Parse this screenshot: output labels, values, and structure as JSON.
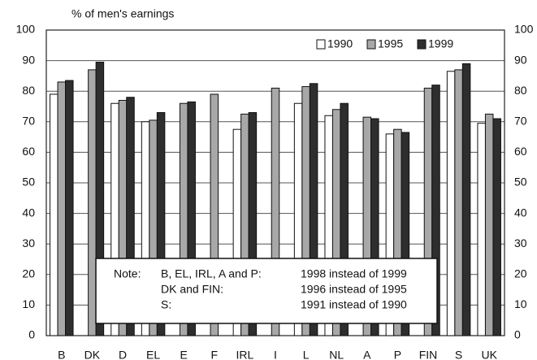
{
  "chart_data": {
    "type": "bar",
    "title": "% of men's earnings",
    "categories": [
      "B",
      "DK",
      "D",
      "EL",
      "E",
      "F",
      "IRL",
      "I",
      "L",
      "NL",
      "A",
      "P",
      "FIN",
      "S",
      "UK"
    ],
    "series": [
      {
        "name": "1990",
        "color": "#ffffff",
        "values": [
          79,
          null,
          76,
          70,
          null,
          null,
          67.5,
          null,
          76,
          72,
          null,
          66,
          null,
          86.5,
          69.5
        ]
      },
      {
        "name": "1995",
        "color": "#a8a8a8",
        "values": [
          83,
          87,
          77,
          70.5,
          76,
          79,
          72.5,
          81,
          81.5,
          74,
          71.5,
          67.5,
          81,
          87,
          72.5
        ]
      },
      {
        "name": "1999",
        "color": "#2e2e2e",
        "values": [
          83.5,
          89.5,
          78,
          73,
          76.5,
          null,
          73,
          null,
          82.5,
          76,
          71,
          66.5,
          82,
          89,
          71
        ]
      }
    ],
    "ylim": [
      0,
      100
    ],
    "yticks": [
      0,
      10,
      20,
      30,
      40,
      50,
      60,
      70,
      80,
      90,
      100
    ],
    "y2lim": [
      0,
      100
    ],
    "y2ticks": [
      0,
      10,
      20,
      30,
      40,
      50,
      60,
      70,
      80,
      90,
      100
    ],
    "grid": true,
    "legend": "top-right",
    "note": {
      "label": "Note:",
      "rows": [
        [
          "B, EL, IRL, A and P:",
          "1998 instead of 1999"
        ],
        [
          "DK and FIN:",
          "1996 instead of 1995"
        ],
        [
          "S:",
          "1991 instead of 1990"
        ]
      ]
    }
  }
}
